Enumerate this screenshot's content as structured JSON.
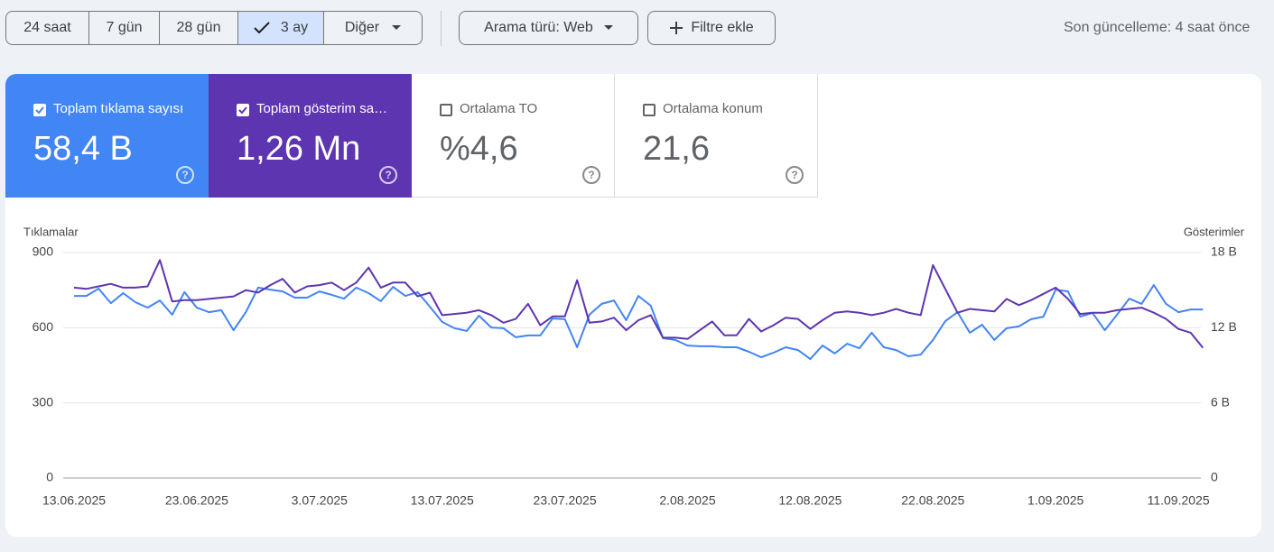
{
  "toolbar": {
    "ranges": [
      {
        "label": "24 saat"
      },
      {
        "label": "7 gün"
      },
      {
        "label": "28 gün"
      },
      {
        "label": "3 ay",
        "selected": true
      }
    ],
    "more": "Diğer",
    "search_type": "Arama türü: Web",
    "add_filter": "Filtre ekle",
    "last_update": "Son güncelleme: 4 saat önce"
  },
  "metrics": [
    {
      "label": "Toplam tıklama sayısı",
      "value": "58,4 B",
      "checked": true,
      "color": "#4285f4"
    },
    {
      "label": "Toplam gösterim sayısı",
      "value": "1,26 Mn",
      "checked": true,
      "color": "#5e35b1"
    },
    {
      "label": "Ortalama TO",
      "value": "%4,6",
      "checked": false
    },
    {
      "label": "Ortalama konum",
      "value": "21,6",
      "checked": false
    }
  ],
  "chart_data": {
    "type": "line",
    "y_label": "Tıklamalar",
    "y2_label": "Gösterimler",
    "categories": [
      "13.06.2025",
      null,
      null,
      null,
      null,
      null,
      null,
      null,
      null,
      null,
      "23.06.2025",
      null,
      null,
      null,
      null,
      null,
      null,
      null,
      null,
      null,
      "3.07.2025",
      null,
      null,
      null,
      null,
      null,
      null,
      null,
      null,
      null,
      "13.07.2025",
      null,
      null,
      null,
      null,
      null,
      null,
      null,
      null,
      null,
      "23.07.2025",
      null,
      null,
      null,
      null,
      null,
      null,
      null,
      null,
      null,
      "2.08.2025",
      null,
      null,
      null,
      null,
      null,
      null,
      null,
      null,
      null,
      "12.08.2025",
      null,
      null,
      null,
      null,
      null,
      null,
      null,
      null,
      null,
      "22.08.2025",
      null,
      null,
      null,
      null,
      null,
      null,
      null,
      null,
      null,
      "1.09.2025",
      null,
      null,
      null,
      null,
      null,
      null,
      null,
      null,
      null,
      "11.09.2025",
      null,
      null
    ],
    "series": [
      {
        "color": "#4285f4",
        "values": [
          727,
          727,
          756,
          698,
          738,
          702,
          680,
          709,
          652,
          742,
          680,
          662,
          670,
          590,
          662,
          760,
          752,
          745,
          720,
          720,
          745,
          731,
          716,
          760,
          738,
          706,
          763,
          727,
          742,
          684,
          623,
          598,
          587,
          648,
          601,
          598,
          562,
          569,
          569,
          637,
          634,
          522,
          652,
          695,
          709,
          630,
          727,
          688,
          558,
          551,
          529,
          526,
          526,
          522,
          522,
          504,
          482,
          500,
          522,
          511,
          475,
          529,
          497,
          536,
          518,
          580,
          522,
          511,
          486,
          493,
          551,
          626,
          662,
          580,
          612,
          551,
          598,
          605,
          634,
          644,
          752,
          745,
          644,
          659,
          590,
          652,
          716,
          695,
          770,
          695,
          662,
          673,
          673
        ]
      },
      {
        "color": "#5e35b1",
        "axis": "y2",
        "values": [
          15200,
          15100,
          15300,
          15500,
          15200,
          15200,
          15300,
          17400,
          14100,
          14200,
          14200,
          14300,
          14400,
          14500,
          15000,
          14800,
          15400,
          15900,
          14800,
          15300,
          15400,
          15600,
          15000,
          15600,
          16800,
          15200,
          15600,
          15600,
          14500,
          14800,
          13000,
          13100,
          13200,
          13400,
          13000,
          12400,
          12700,
          13900,
          12200,
          12900,
          12900,
          15800,
          12400,
          12500,
          12800,
          11800,
          12600,
          13000,
          11200,
          11200,
          11100,
          11800,
          12500,
          11400,
          11400,
          12700,
          11700,
          12200,
          12800,
          12700,
          11900,
          12600,
          13200,
          13300,
          13200,
          13000,
          13200,
          13500,
          13200,
          13000,
          17000,
          15100,
          13200,
          13500,
          13400,
          13300,
          14300,
          13800,
          14200,
          14700,
          15200,
          14300,
          13100,
          13200,
          13200,
          13400,
          13500,
          13600,
          13200,
          12700,
          11900,
          11600,
          10400
        ]
      }
    ],
    "ylim": [
      0,
      900
    ],
    "yticks": [
      0,
      300,
      600,
      900
    ],
    "y2lim": [
      0,
      18000
    ],
    "y2ticks": [
      0,
      {
        "value": 6000,
        "label": "6 B"
      },
      {
        "value": 12000,
        "label": "12 B"
      },
      {
        "value": 18000,
        "label": "18 B"
      }
    ],
    "grid": true
  }
}
